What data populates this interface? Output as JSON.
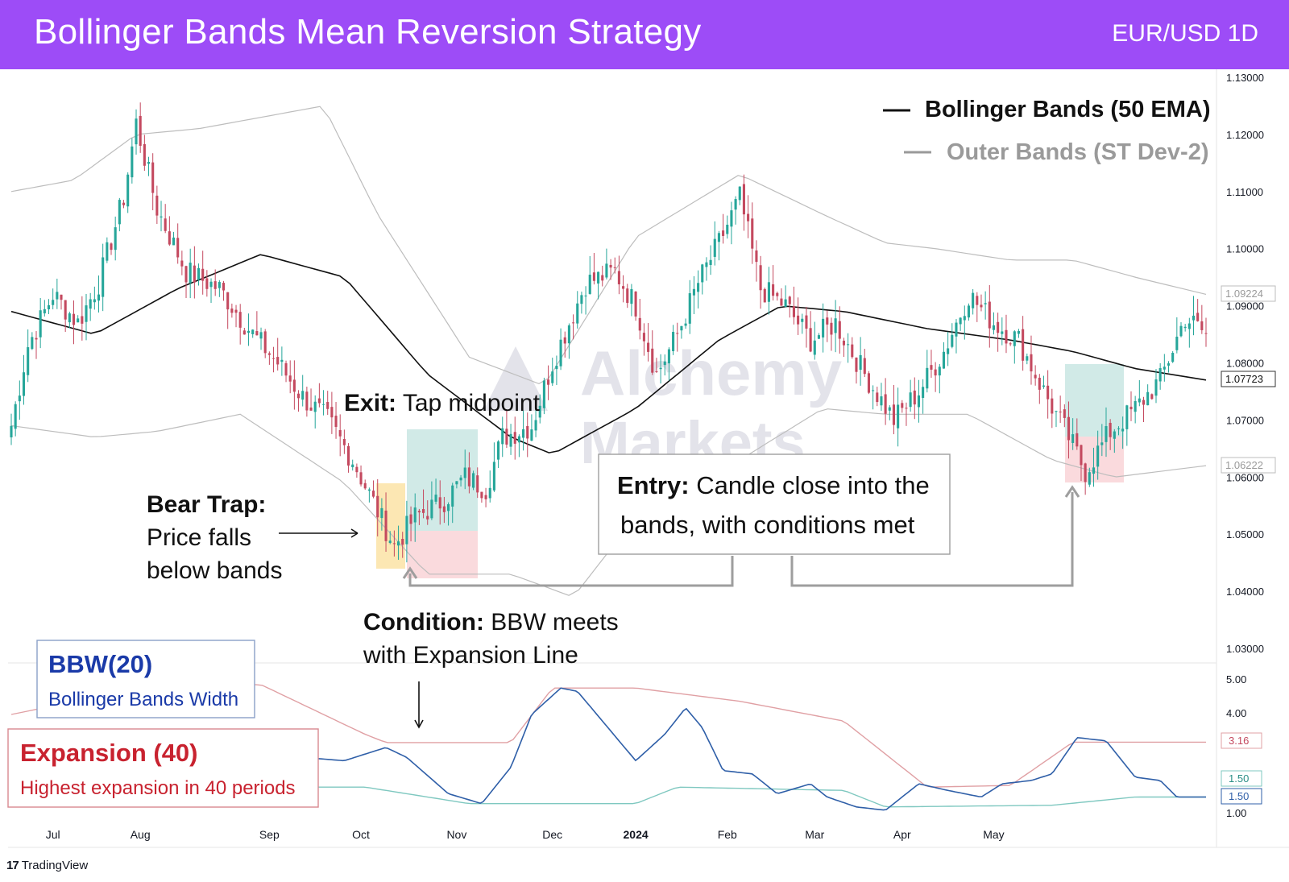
{
  "header": {
    "title": "Bollinger Bands Mean Reversion Strategy",
    "symbol": "EUR/USD 1D"
  },
  "colors": {
    "header_bg": "#9d4cf7",
    "bull": "#26a69a",
    "bear": "#c4495f",
    "bbw": "#2f5fa8",
    "expansion": "#e0a0a4",
    "squeeze": "#7fc8c0",
    "legend_bb": "#111111",
    "legend_outer": "#9a9a9a"
  },
  "legend": {
    "bb": "Bollinger Bands (50 EMA)",
    "outer": "Outer Bands (ST Dev-2)"
  },
  "watermark": {
    "line1": "Alchemy",
    "line2": "Markets"
  },
  "annotations": {
    "exit_bold": "Exit:",
    "exit_text": "Tap midpoint",
    "bear_title": "Bear Trap:",
    "bear_line1": "Price falls",
    "bear_line2": "below bands",
    "entry_bold": "Entry:",
    "entry_line1": "Candle close into the",
    "entry_line2": "bands, with conditions met",
    "cond_bold": "Condition:",
    "cond_line1": "BBW meets",
    "cond_line2": "with Expansion Line"
  },
  "bbw_box": {
    "title": "BBW(20)",
    "subtitle": "Bollinger Bands Width"
  },
  "exp_box": {
    "title": "Expansion (40)",
    "subtitle": "Highest expansion in 40 periods"
  },
  "price_axis": {
    "ticks": [
      "1.13000",
      "1.12000",
      "1.11000",
      "1.10000",
      "1.09000",
      "1.08000",
      "1.07000",
      "1.06000",
      "1.05000",
      "1.04000",
      "1.03000"
    ],
    "labels": {
      "upper": "1.09224",
      "mid": "1.07723",
      "lower": "1.06222"
    }
  },
  "bbw_axis": {
    "ticks": [
      "5.00",
      "4.00",
      "1.00"
    ],
    "labels": {
      "expansion": "3.16",
      "bbw_a": "1.50",
      "bbw_b": "1.50"
    }
  },
  "time_axis": [
    "Jul",
    "Aug",
    "Sep",
    "Oct",
    "Nov",
    "Dec",
    "2024",
    "Feb",
    "Mar",
    "Apr",
    "May"
  ],
  "footer": {
    "brand": "TradingView"
  },
  "chart_data": {
    "type": "candlestick",
    "title": "Bollinger Bands Mean Reversion Strategy",
    "symbol": "EUR/USD",
    "timeframe": "1D",
    "price_range": [
      1.03,
      1.13
    ],
    "last_values": {
      "upper_band": 1.09224,
      "middle_band": 1.07723,
      "lower_band": 1.06222
    },
    "bbw_panel": {
      "range": [
        1.0,
        5.0
      ],
      "expansion_last": 3.16,
      "bbw_last": 1.5,
      "squeeze_last": 1.5
    },
    "x_months": [
      "Jul",
      "Aug",
      "Sep",
      "Oct",
      "Nov",
      "Dec",
      "2024",
      "Feb",
      "Mar",
      "Apr",
      "May"
    ],
    "price_anchors": [
      [
        0,
        1.069
      ],
      [
        4,
        1.083
      ],
      [
        10,
        1.092
      ],
      [
        16,
        1.087
      ],
      [
        21,
        1.094
      ],
      [
        27,
        1.109
      ],
      [
        30,
        1.122
      ],
      [
        35,
        1.107
      ],
      [
        42,
        1.096
      ],
      [
        50,
        1.093
      ],
      [
        58,
        1.085
      ],
      [
        64,
        1.08
      ],
      [
        70,
        1.074
      ],
      [
        76,
        1.07
      ],
      [
        82,
        1.063
      ],
      [
        88,
        1.054
      ],
      [
        92,
        1.048
      ],
      [
        97,
        1.053
      ],
      [
        104,
        1.056
      ],
      [
        109,
        1.06
      ],
      [
        114,
        1.058
      ],
      [
        118,
        1.067
      ],
      [
        125,
        1.069
      ],
      [
        130,
        1.08
      ],
      [
        138,
        1.094
      ],
      [
        145,
        1.096
      ],
      [
        150,
        1.09
      ],
      [
        155,
        1.078
      ],
      [
        160,
        1.085
      ],
      [
        165,
        1.094
      ],
      [
        170,
        1.101
      ],
      [
        175,
        1.109
      ],
      [
        180,
        1.093
      ],
      [
        186,
        1.09
      ],
      [
        192,
        1.084
      ],
      [
        198,
        1.087
      ],
      [
        205,
        1.078
      ],
      [
        212,
        1.07
      ],
      [
        218,
        1.075
      ],
      [
        224,
        1.082
      ],
      [
        230,
        1.092
      ],
      [
        236,
        1.087
      ],
      [
        242,
        1.084
      ],
      [
        248,
        1.075
      ],
      [
        254,
        1.067
      ],
      [
        258,
        1.061
      ],
      [
        264,
        1.068
      ],
      [
        270,
        1.072
      ],
      [
        276,
        1.077
      ],
      [
        282,
        1.088
      ],
      [
        287,
        1.085
      ]
    ],
    "bands": {
      "mid": [
        [
          0,
          1.089
        ],
        [
          20,
          1.085
        ],
        [
          40,
          1.093
        ],
        [
          60,
          1.099
        ],
        [
          80,
          1.095
        ],
        [
          100,
          1.078
        ],
        [
          120,
          1.067
        ],
        [
          130,
          1.064
        ],
        [
          150,
          1.072
        ],
        [
          170,
          1.084
        ],
        [
          185,
          1.09
        ],
        [
          200,
          1.089
        ],
        [
          220,
          1.086
        ],
        [
          240,
          1.084
        ],
        [
          255,
          1.082
        ],
        [
          270,
          1.079
        ],
        [
          287,
          1.077
        ]
      ],
      "upper": [
        [
          0,
          1.11
        ],
        [
          15,
          1.112
        ],
        [
          30,
          1.12
        ],
        [
          45,
          1.121
        ],
        [
          75,
          1.125
        ],
        [
          88,
          1.106
        ],
        [
          110,
          1.081
        ],
        [
          128,
          1.076
        ],
        [
          150,
          1.102
        ],
        [
          175,
          1.113
        ],
        [
          195,
          1.106
        ],
        [
          210,
          1.101
        ],
        [
          222,
          1.1
        ],
        [
          240,
          1.098
        ],
        [
          255,
          1.098
        ],
        [
          270,
          1.095
        ],
        [
          287,
          1.092
        ]
      ],
      "lower": [
        [
          0,
          1.069
        ],
        [
          20,
          1.067
        ],
        [
          35,
          1.068
        ],
        [
          55,
          1.071
        ],
        [
          80,
          1.059
        ],
        [
          100,
          1.043
        ],
        [
          120,
          1.043
        ],
        [
          135,
          1.039
        ],
        [
          150,
          1.053
        ],
        [
          175,
          1.063
        ],
        [
          195,
          1.072
        ],
        [
          210,
          1.071
        ],
        [
          230,
          1.071
        ],
        [
          250,
          1.063
        ],
        [
          265,
          1.06
        ],
        [
          287,
          1.062
        ]
      ]
    },
    "bbw": [
      [
        0,
        3.2
      ],
      [
        12,
        3.3
      ],
      [
        22,
        3.4
      ],
      [
        30,
        3.5
      ],
      [
        35,
        3.4
      ],
      [
        45,
        3.5
      ],
      [
        50,
        3.3
      ],
      [
        60,
        2.6
      ],
      [
        70,
        2.7
      ],
      [
        80,
        2.6
      ],
      [
        90,
        3.0
      ],
      [
        95,
        2.7
      ],
      [
        105,
        1.6
      ],
      [
        113,
        1.3
      ],
      [
        120,
        2.4
      ],
      [
        125,
        4.0
      ],
      [
        132,
        4.8
      ],
      [
        136,
        4.7
      ],
      [
        142,
        3.8
      ],
      [
        150,
        2.6
      ],
      [
        157,
        3.4
      ],
      [
        162,
        4.2
      ],
      [
        166,
        3.6
      ],
      [
        171,
        2.3
      ],
      [
        178,
        2.2
      ],
      [
        184,
        1.6
      ],
      [
        192,
        1.9
      ],
      [
        196,
        1.5
      ],
      [
        203,
        1.2
      ],
      [
        210,
        1.1
      ],
      [
        218,
        1.9
      ],
      [
        225,
        1.7
      ],
      [
        233,
        1.5
      ],
      [
        238,
        1.9
      ],
      [
        245,
        2.0
      ],
      [
        250,
        2.2
      ],
      [
        256,
        3.3
      ],
      [
        263,
        3.2
      ],
      [
        270,
        2.1
      ],
      [
        276,
        2.0
      ],
      [
        280,
        1.5
      ],
      [
        287,
        1.5
      ]
    ],
    "expansion": [
      [
        0,
        4.0
      ],
      [
        35,
        4.9
      ],
      [
        60,
        4.9
      ],
      [
        85,
        3.4
      ],
      [
        90,
        3.15
      ],
      [
        120,
        3.15
      ],
      [
        130,
        4.8
      ],
      [
        150,
        4.8
      ],
      [
        175,
        4.4
      ],
      [
        200,
        3.8
      ],
      [
        220,
        1.8
      ],
      [
        240,
        1.85
      ],
      [
        255,
        3.16
      ],
      [
        287,
        3.16
      ]
    ],
    "squeeze": [
      [
        0,
        1.9
      ],
      [
        60,
        1.8
      ],
      [
        85,
        1.8
      ],
      [
        110,
        1.3
      ],
      [
        150,
        1.3
      ],
      [
        160,
        1.8
      ],
      [
        200,
        1.7
      ],
      [
        210,
        1.2
      ],
      [
        250,
        1.25
      ],
      [
        270,
        1.5
      ],
      [
        287,
        1.5
      ]
    ]
  }
}
